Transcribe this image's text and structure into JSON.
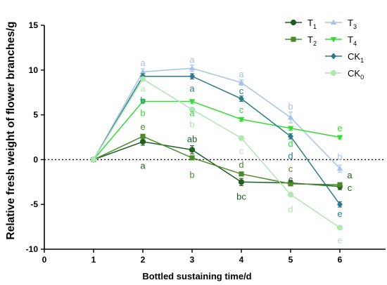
{
  "chart_data": {
    "type": "line",
    "xlabel": "Bottled sustaining  time/d",
    "ylabel": "Relative fresh weight of flower branches/g",
    "xlim": [
      0,
      7
    ],
    "ylim": [
      -10,
      15
    ],
    "xticks": [
      0,
      1,
      2,
      3,
      4,
      5,
      6
    ],
    "yticks": [
      -10,
      -5,
      0,
      5,
      10,
      15
    ],
    "reference_line": {
      "y": 0,
      "style": "dotted"
    },
    "legend_position": "top-right",
    "x": [
      1,
      2,
      3,
      4,
      5,
      6
    ],
    "series": [
      {
        "name": "T1",
        "sub": "1",
        "base": "T",
        "color": "#1e5e1e",
        "marker": "circle",
        "values": [
          0,
          2.0,
          1.1,
          -2.5,
          -2.6,
          -3.0
        ],
        "errors": [
          0,
          0.4,
          0.45,
          0.4,
          0.3,
          0.35
        ]
      },
      {
        "name": "T2",
        "sub": "2",
        "base": "T",
        "color": "#4a8a2a",
        "marker": "square",
        "values": [
          0,
          2.6,
          0.2,
          -1.6,
          -2.7,
          -2.8
        ],
        "errors": [
          0,
          0.2,
          0.2,
          0.2,
          0.2,
          0.2
        ]
      },
      {
        "name": "T3",
        "sub": "3",
        "base": "T",
        "color": "#a6c4e8",
        "marker": "triangle-up",
        "values": [
          0,
          9.8,
          10.2,
          8.6,
          4.7,
          -1.0
        ],
        "errors": [
          0,
          0.35,
          0.35,
          0.3,
          0.6,
          0.4
        ]
      },
      {
        "name": "T4",
        "sub": "4",
        "base": "T",
        "color": "#33dd33",
        "marker": "triangle-down",
        "values": [
          0,
          6.5,
          6.5,
          4.5,
          3.5,
          2.5
        ],
        "errors": [
          0,
          0.2,
          0.2,
          0.2,
          0.2,
          0.2
        ]
      },
      {
        "name": "CK1",
        "sub": "1",
        "base": "CK",
        "color": "#2a7a8a",
        "marker": "diamond",
        "values": [
          0,
          9.3,
          9.3,
          6.8,
          2.6,
          -5.0
        ],
        "errors": [
          0,
          0.3,
          0.3,
          0.3,
          0.3,
          0.3
        ]
      },
      {
        "name": "CK0",
        "sub": "0",
        "base": "CK",
        "color": "#b0e6b0",
        "marker": "circle",
        "values": [
          0,
          9.0,
          5.6,
          2.4,
          -3.9,
          -7.6
        ],
        "errors": [
          0,
          0.2,
          0.2,
          0.2,
          0.2,
          0.2
        ]
      }
    ],
    "annotations": [
      {
        "x": 2,
        "y": 10.85,
        "text": "a",
        "color": "#a6c4e8"
      },
      {
        "x": 2,
        "y": 8.0,
        "text": "a",
        "color": "#b0e6b0"
      },
      {
        "x": 2,
        "y": 6.65,
        "text": "b",
        "color": "#2a7a8a"
      },
      {
        "x": 2,
        "y": 5.25,
        "text": "b",
        "color": "#33dd33"
      },
      {
        "x": 2,
        "y": 3.7,
        "text": "e",
        "color": "#4a8a2a"
      },
      {
        "x": 2,
        "y": -0.65,
        "text": "a",
        "color": "#1e5e1e"
      },
      {
        "x": 3,
        "y": 11.2,
        "text": "a",
        "color": "#a6c4e8"
      },
      {
        "x": 3,
        "y": 8.0,
        "text": "a",
        "color": "#2a7a8a"
      },
      {
        "x": 3,
        "y": 5.25,
        "text": "a",
        "color": "#33dd33"
      },
      {
        "x": 3,
        "y": 4.0,
        "text": "b",
        "color": "#b0e6b0"
      },
      {
        "x": 3,
        "y": 2.35,
        "text": "ab",
        "color": "#1e5e1e"
      },
      {
        "x": 3,
        "y": -1.65,
        "text": "b",
        "color": "#4a8a2a"
      },
      {
        "x": 4,
        "y": 9.6,
        "text": "a",
        "color": "#a6c4e8"
      },
      {
        "x": 4,
        "y": 7.7,
        "text": "c",
        "color": "#2a7a8a"
      },
      {
        "x": 4,
        "y": 5.6,
        "text": "c",
        "color": "#33dd33"
      },
      {
        "x": 4,
        "y": 1.0,
        "text": "c",
        "color": "#b0e6b0"
      },
      {
        "x": 4,
        "y": -0.5,
        "text": "d",
        "color": "#4a8a2a"
      },
      {
        "x": 4,
        "y": -4.1,
        "text": "bc",
        "color": "#1e5e1e"
      },
      {
        "x": 5,
        "y": 6.0,
        "text": "b",
        "color": "#a6c4e8"
      },
      {
        "x": 5,
        "y": 1.85,
        "text": "d",
        "color": "#33dd33"
      },
      {
        "x": 5,
        "y": 0.45,
        "text": "d",
        "color": "#2a7a8a"
      },
      {
        "x": 5,
        "y": -1.0,
        "text": "c",
        "color": "#4a8a2a"
      },
      {
        "x": 5,
        "y": -2.15,
        "text": "c",
        "color": "#1e5e1e"
      },
      {
        "x": 5,
        "y": -5.5,
        "text": "d",
        "color": "#b0e6b0"
      },
      {
        "x": 6,
        "y": 3.55,
        "text": "e",
        "color": "#33dd33"
      },
      {
        "x": 6,
        "y": 0.35,
        "text": "b",
        "color": "#a6c4e8"
      },
      {
        "x": 6.2,
        "y": -1.7,
        "text": "a",
        "color": "#1e5e1e"
      },
      {
        "x": 6.2,
        "y": -3.1,
        "text": "c",
        "color": "#1e5e1e"
      },
      {
        "x": 6,
        "y": -6.0,
        "text": "e",
        "color": "#2a7a8a"
      },
      {
        "x": 6,
        "y": -8.95,
        "text": "e",
        "color": "#b0e6b0"
      }
    ]
  }
}
